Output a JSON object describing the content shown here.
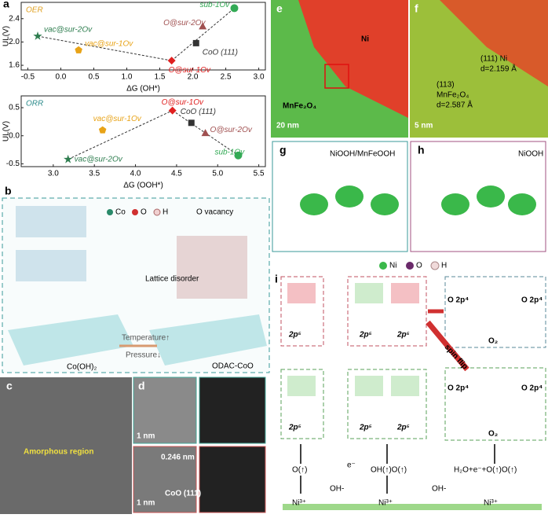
{
  "panel_labels": [
    "a",
    "b",
    "c",
    "d",
    "e",
    "f",
    "g",
    "h",
    "i"
  ],
  "charts": [
    {
      "type": "scatter",
      "title": "OER",
      "x_label": "ΔG (OH*)",
      "y_label": "UL(V)",
      "xlim": [
        -0.6,
        3.1
      ],
      "xticks": [
        -0.5,
        {
          "value": 0,
          "label": "0.0"
        },
        0.5,
        {
          "value": 1,
          "label": "1.0"
        },
        1.5,
        {
          "value": 2,
          "label": "2.0"
        },
        2.5,
        {
          "value": 3,
          "label": "3.0"
        }
      ],
      "ylim": [
        1.52,
        2.68
      ],
      "yticks": [
        1.6,
        {
          "value": 2,
          "label": "2.0"
        },
        2.4
      ],
      "points": [
        {
          "name": "vac@sur-2Ov",
          "x": -0.35,
          "y": 2.1,
          "color": "#2e7d4f",
          "marker": "star"
        },
        {
          "name": "vac@sur-1Ov",
          "x": 0.27,
          "y": 1.86,
          "color": "#e8a317",
          "marker": "pentagon"
        },
        {
          "name": "O@sur-1Ov",
          "x": 1.68,
          "y": 1.68,
          "color": "#e02020",
          "marker": "diamond"
        },
        {
          "name": "CoO (111)",
          "x": 2.05,
          "y": 1.98,
          "color": "#333333",
          "marker": "square"
        },
        {
          "name": "O@sur-2Ov",
          "x": 2.15,
          "y": 2.27,
          "color": "#a05050",
          "marker": "triangle"
        },
        {
          "name": "sub-1Ov",
          "x": 2.63,
          "y": 2.58,
          "color": "#33aa55",
          "marker": "circle"
        }
      ]
    },
    {
      "type": "scatter",
      "title": "ORR",
      "x_label": "ΔG (OOH*)",
      "y_label": "UL(V)",
      "xlim": [
        2.61,
        5.58
      ],
      "xticks": [
        {
          "value": 3,
          "label": "3.0"
        },
        3.5,
        {
          "value": 4,
          "label": "4.0"
        },
        4.5,
        {
          "value": 5,
          "label": "5.0"
        },
        5.5
      ],
      "ylim": [
        -0.55,
        0.71
      ],
      "yticks": [
        0.5,
        {
          "value": 0,
          "label": "0.0"
        },
        -0.5
      ],
      "points": [
        {
          "name": "vac@sur-2Ov",
          "x": 3.18,
          "y": -0.42,
          "color": "#2e7d4f",
          "marker": "star"
        },
        {
          "name": "vac@sur-1Ov",
          "x": 3.6,
          "y": 0.1,
          "color": "#e8a317",
          "marker": "pentagon"
        },
        {
          "name": "O@sur-1Ov",
          "x": 4.45,
          "y": 0.45,
          "color": "#e02020",
          "marker": "diamond"
        },
        {
          "name": "CoO (111)",
          "x": 4.68,
          "y": 0.23,
          "color": "#333333",
          "marker": "square"
        },
        {
          "name": "O@sur-2Ov",
          "x": 4.85,
          "y": 0.05,
          "color": "#a05050",
          "marker": "triangle"
        },
        {
          "name": "sub-1Ov",
          "x": 5.25,
          "y": -0.35,
          "color": "#33aa55",
          "marker": "circle"
        }
      ]
    }
  ],
  "b": {
    "legend": [
      "Co",
      "O",
      "H"
    ],
    "vacancy": "O vacancy",
    "disorder": "Lattice disorder",
    "temperature": "Temperature↑",
    "pressure": "Pressure↓",
    "left": "Co(OH)₂",
    "right": "ODAC-CoO"
  },
  "c": {
    "label": "Amorphous region"
  },
  "d": {
    "scale1": "1 nm",
    "spacing": "0.246 nm",
    "plane": "CoO (111)",
    "scale2": "1 nm"
  },
  "e": {
    "ni": "Ni",
    "oxide": "MnFe₂O₄",
    "scale": "20 nm"
  },
  "f": {
    "ni_plane": "(111) Ni",
    "ni_d": "d=2.159 Å",
    "ox_plane": "(113)",
    "ox_name": "MnFe₂O₄",
    "ox_d": "d=2.587 Å",
    "scale": "5 nm"
  },
  "g": {
    "label": "NiOOH/MnFeOOH"
  },
  "h": {
    "label": "NiOOH"
  },
  "atoms_legend": [
    "Ni",
    "O",
    "H"
  ],
  "i": {
    "p5": [
      "2p⁵",
      "2p⁵",
      "2p⁵",
      "2p⁵",
      "2p⁵",
      "2p⁵"
    ],
    "o2p4": [
      "O 2p⁴",
      "O 2p⁴",
      "O 2p⁴",
      "O 2p⁴"
    ],
    "o2": [
      "O₂",
      "O₂"
    ],
    "spin_flip": "spin flip",
    "states": [
      "O(↑)",
      "OH(↑)O(↑)",
      "H₂O+e⁻+O(↑)O(↑)"
    ],
    "ohm": [
      "OH-",
      "OH-"
    ],
    "e": "e⁻",
    "ni": [
      "Ni³⁺",
      "Ni³⁺",
      "Ni³⁺"
    ]
  }
}
